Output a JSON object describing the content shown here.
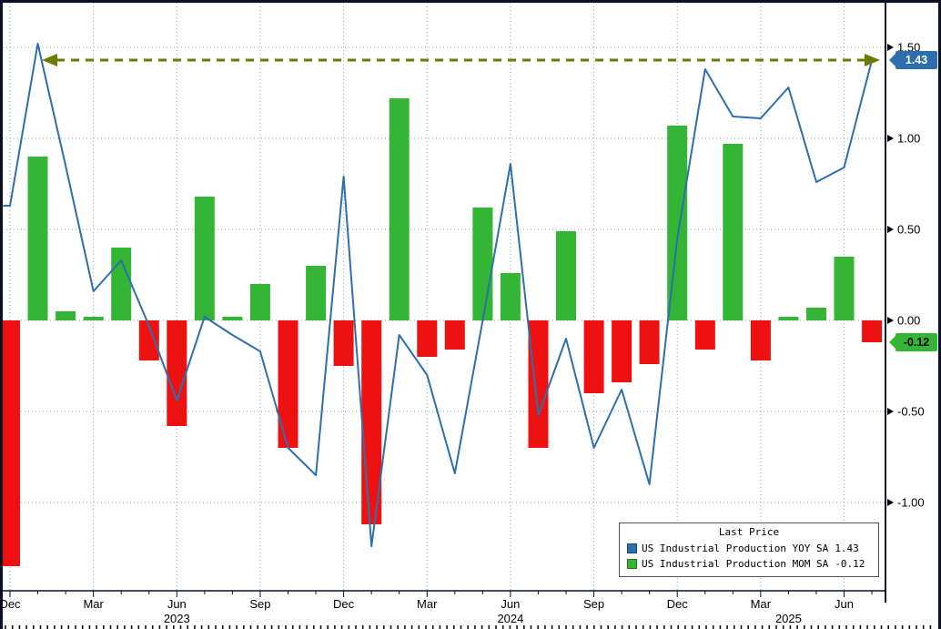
{
  "chart_data": {
    "type": "combo-bar-line",
    "months": [
      "Dec 2022",
      "Jan 2023",
      "Feb 2023",
      "Mar 2023",
      "Apr 2023",
      "May 2023",
      "Jun 2023",
      "Jul 2023",
      "Aug 2023",
      "Sep 2023",
      "Oct 2023",
      "Nov 2023",
      "Dec 2023",
      "Jan 2024",
      "Feb 2024",
      "Mar 2024",
      "Apr 2024",
      "May 2024",
      "Jun 2024",
      "Jul 2024",
      "Aug 2024",
      "Sep 2024",
      "Oct 2024",
      "Nov 2024",
      "Dec 2024",
      "Jan 2025",
      "Feb 2025",
      "Mar 2025",
      "Apr 2025",
      "May 2025",
      "Jun 2025",
      "Jul 2025"
    ],
    "series": [
      {
        "name": "US Industrial Production YOY SA",
        "type": "line",
        "color": "#2d6fad",
        "last": 1.43,
        "values": [
          0.63,
          1.52,
          0.85,
          0.16,
          0.33,
          -0.03,
          -0.44,
          0.02,
          -0.08,
          -0.17,
          -0.7,
          -0.85,
          0.79,
          -1.24,
          -0.08,
          -0.3,
          -0.84,
          0.0,
          0.86,
          -0.52,
          -0.1,
          -0.7,
          -0.38,
          -0.9,
          0.45,
          1.38,
          1.12,
          1.11,
          1.28,
          0.76,
          0.84,
          1.43
        ]
      },
      {
        "name": "US Industrial Production MOM SA",
        "type": "bar",
        "color_positive": "#35b535",
        "color_negative": "#ee1111",
        "last": -0.12,
        "values": [
          -1.35,
          0.9,
          0.05,
          0.02,
          0.4,
          -0.22,
          -0.58,
          0.68,
          0.02,
          0.2,
          -0.7,
          0.3,
          -0.25,
          -1.12,
          1.22,
          -0.2,
          -0.16,
          0.62,
          0.26,
          -0.7,
          0.49,
          -0.4,
          -0.34,
          -0.24,
          1.07,
          -0.16,
          0.97,
          -0.22,
          0.02,
          0.07,
          0.35,
          -0.12
        ]
      }
    ],
    "y_axis": {
      "side": "right",
      "range": [
        -1.48,
        1.74
      ],
      "ticks": [
        {
          "label": "1.50",
          "value": 1.5
        },
        {
          "label": "1.00",
          "value": 1.0
        },
        {
          "label": "0.50",
          "value": 0.5
        },
        {
          "label": "0.00",
          "value": 0.0
        },
        {
          "label": "-0.50",
          "value": -0.5
        },
        {
          "label": "-1.00",
          "value": -1.0
        }
      ]
    },
    "x_axis": {
      "ticks": [
        {
          "label": "Dec",
          "index": 0
        },
        {
          "label": "Mar",
          "index": 3
        },
        {
          "label": "Jun",
          "index": 6
        },
        {
          "label": "Sep",
          "index": 9
        },
        {
          "label": "Dec",
          "index": 12
        },
        {
          "label": "Mar",
          "index": 15
        },
        {
          "label": "Jun",
          "index": 18
        },
        {
          "label": "Sep",
          "index": 21
        },
        {
          "label": "Dec",
          "index": 24
        },
        {
          "label": "Mar",
          "index": 27
        },
        {
          "label": "Jun",
          "index": 30
        }
      ],
      "year_labels": [
        {
          "label": "2023",
          "index": 6
        },
        {
          "label": "2024",
          "index": 18
        },
        {
          "label": "2025",
          "index": 28
        }
      ]
    },
    "grid": "dotted",
    "annotation": {
      "type": "horizontal-dashed-arrow",
      "value": 1.43,
      "color": "#6d7c00"
    },
    "callouts": [
      {
        "text": "1.43",
        "value": 1.43
      },
      {
        "text": "-0.12",
        "value": -0.12
      }
    ],
    "legend": {
      "title": "Last Price",
      "position": "bottom-right",
      "entries": [
        {
          "label": "US Industrial Production YOY SA",
          "value": "1.43",
          "color": "#2d6fad"
        },
        {
          "label": "US Industrial Production MOM SA",
          "value": "-0.12",
          "color": "#35b535"
        }
      ]
    },
    "style": {
      "background": "#ffffff",
      "grid_color": "#97a3c2",
      "frame_color": "#0b1026"
    }
  }
}
